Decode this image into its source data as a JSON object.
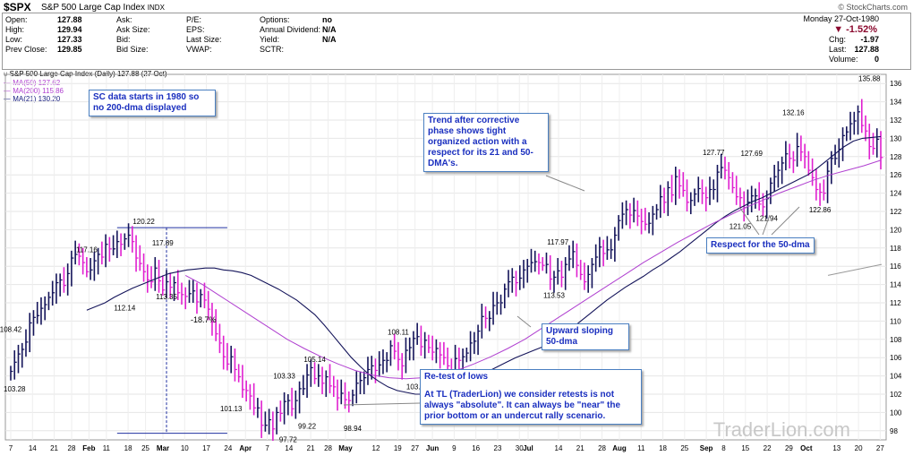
{
  "header": {
    "symbol": "$SPX",
    "desc": "S&P 500 Large Cap Index",
    "exchange": "INDX",
    "source": "© StockCharts.com",
    "date": "Monday 27-Oct-1980",
    "change_pct": "-1.52%"
  },
  "quote": {
    "col1": [
      [
        "Open:",
        "127.88"
      ],
      [
        "High:",
        "129.94"
      ],
      [
        "Low:",
        "127.33"
      ],
      [
        "Prev Close:",
        "129.85"
      ]
    ],
    "col2": [
      "Ask:",
      "Ask Size:",
      "Bid:",
      "Bid Size:"
    ],
    "col3": [
      "P/E:",
      "EPS:",
      "Last Size:",
      "VWAP:"
    ],
    "col4": [
      [
        "Options:",
        "no"
      ],
      [
        "Annual Dividend:",
        "N/A"
      ],
      [
        "Yield:",
        "N/A"
      ],
      [
        "SCTR:",
        ""
      ]
    ],
    "col5": [
      [
        "Chg:",
        "-1.97"
      ],
      [
        "Last:",
        "127.88"
      ],
      [
        "Volume:",
        "0"
      ]
    ]
  },
  "legend": {
    "title": "S&P 500 Large Cap Index (Daily) 127.88 (27 Oct)",
    "ma50": "MA(50) 127.62",
    "ma200": "MA(200) 115.86",
    "ma21": "MA(21) 130.20"
  },
  "annotations": {
    "a1": "SC data starts in 1980 so no 200-dma displayed",
    "a2": "Trend after corrective phase shows tight organized action with a respect for its 21 and 50-DMA's.",
    "a3": "Respect for the 50-dma",
    "a4": "Upward sloping 50-dma",
    "a5t": "Re-test of lows",
    "a5b": "At TL (TraderLion) we consider retests is not always \"absolute\". It can always be \"near\" the prior bottom or an undercut rally scenario.",
    "pct": "-18.7%"
  },
  "watermark": "TraderLion.com",
  "chart_data": {
    "type": "ohlc",
    "ylim": [
      97,
      137
    ],
    "yticks": [
      98,
      100,
      102,
      104,
      106,
      108,
      110,
      112,
      114,
      116,
      118,
      120,
      122,
      124,
      126,
      128,
      130,
      132,
      134,
      136
    ],
    "xticks": [
      [
        "7",
        0
      ],
      [
        "14",
        5
      ],
      [
        "21",
        10
      ],
      [
        "28",
        14
      ],
      [
        "Feb",
        18
      ],
      [
        "11",
        22
      ],
      [
        "18",
        27
      ],
      [
        "25",
        31
      ],
      [
        "Mar",
        35
      ],
      [
        "10",
        40
      ],
      [
        "17",
        45
      ],
      [
        "24",
        50
      ],
      [
        "Apr",
        54
      ],
      [
        "7",
        59
      ],
      [
        "14",
        64
      ],
      [
        "21",
        69
      ],
      [
        "28",
        73
      ],
      [
        "May",
        77
      ],
      [
        "12",
        84
      ],
      [
        "19",
        89
      ],
      [
        "27",
        93
      ],
      [
        "Jun",
        97
      ],
      [
        "9",
        102
      ],
      [
        "16",
        107
      ],
      [
        "23",
        112
      ],
      [
        "30",
        117
      ],
      [
        "Jul",
        119
      ],
      [
        "14",
        126
      ],
      [
        "21",
        131
      ],
      [
        "28",
        136
      ],
      [
        "Aug",
        140
      ],
      [
        "11",
        145
      ],
      [
        "18",
        150
      ],
      [
        "25",
        155
      ],
      [
        "Sep",
        160
      ],
      [
        "8",
        164
      ],
      [
        "15",
        169
      ],
      [
        "22",
        174
      ],
      [
        "29",
        179
      ],
      [
        "Oct",
        183
      ],
      [
        "13",
        190
      ],
      [
        "20",
        195
      ],
      [
        "27",
        200
      ]
    ],
    "closes": [
      104.5,
      105.5,
      106.4,
      106.9,
      107.7,
      109.8,
      110.4,
      110.6,
      111.4,
      111.8,
      112.6,
      113.1,
      114.2,
      114.5,
      113.9,
      115.2,
      116.9,
      117.3,
      117.1,
      116.4,
      115.4,
      115.6,
      116.6,
      117.3,
      117.0,
      118.4,
      117.9,
      117.9,
      118.7,
      118.4,
      119.0,
      119.4,
      118.7,
      116.9,
      116.3,
      115.4,
      114.5,
      114.3,
      115.8,
      114.4,
      113.4,
      114.3,
      113.7,
      114.2,
      113.1,
      112.9,
      112.7,
      113.0,
      113.3,
      112.1,
      112.9,
      112.3,
      111.3,
      109.9,
      108.6,
      107.6,
      106.1,
      105.3,
      106.1,
      104.7,
      103.9,
      102.5,
      102.4,
      101.8,
      100.5,
      100.5,
      98.6,
      98.6,
      99.2,
      98.2,
      100.0,
      99.9,
      101.2,
      101.3,
      100.4,
      101.3,
      102.6,
      102.6,
      104.1,
      104.9,
      103.7,
      104.0,
      103.2,
      103.9,
      102.9,
      102.8,
      101.6,
      102.1,
      101.4,
      101.3,
      101.9,
      103.2,
      103.5,
      103.8,
      104.7,
      105.1,
      104.6,
      105.2,
      105.7,
      105.7,
      107.3,
      106.7,
      105.8,
      105.1,
      106.8,
      107.1,
      108.1,
      108.3,
      107.2,
      107.9,
      107.1,
      106.6,
      107.0,
      106.3,
      106.0,
      105.1,
      104.6,
      105.9,
      105.7,
      106.1,
      106.5,
      107.6,
      107.8,
      108.9,
      110.5,
      110.3,
      110.3,
      111.7,
      112.0,
      112.0,
      113.5,
      114.3,
      114.8,
      114.2,
      114.7,
      115.6,
      116.0,
      116.4,
      116.5,
      116.4,
      116.1,
      116.2,
      114.6,
      114.8,
      115.5,
      114.8,
      116.2,
      116.8,
      117.6,
      116.1,
      115.1,
      114.3,
      115.1,
      116.2,
      117.0,
      118.1,
      117.4,
      117.8,
      117.8,
      119.4,
      121.0,
      121.7,
      122.2,
      121.6,
      122.1,
      121.5,
      120.9,
      120.6,
      120.7,
      121.7,
      122.2,
      123.6,
      123.0,
      124.6,
      123.8,
      125.8,
      124.8,
      124.3,
      123.0,
      123.2,
      123.9,
      124.5,
      124.0,
      123.5,
      124.4,
      124.4,
      126.3,
      126.8,
      126.5,
      125.7,
      124.6,
      123.6,
      123.5,
      122.4,
      123.0,
      123.7,
      123.7,
      122.8,
      122.5,
      123.4,
      125.1,
      125.8,
      126.5,
      127.3,
      128.3,
      127.8,
      127.6,
      129.1,
      128.5,
      128.0,
      126.5,
      125.7,
      124.4,
      124.1,
      124.0,
      126.4,
      127.8,
      127.8,
      128.8,
      130.3,
      130.7,
      131.6,
      131.9,
      132.9,
      131.4,
      130.8,
      129.1,
      128.9,
      129.9,
      127.9
    ],
    "ma21": [
      111.2,
      111.6,
      112.0,
      112.6,
      113.1,
      113.6,
      114.0,
      114.4,
      114.8,
      115.2,
      115.4,
      115.6,
      115.7,
      115.8,
      115.8,
      115.6,
      115.5,
      115.3,
      115.0,
      114.5,
      114.0,
      113.5,
      112.9,
      112.3,
      111.5,
      110.7,
      109.6,
      108.4,
      107.2,
      106.0,
      105.0,
      104.1,
      103.4,
      102.8,
      102.4,
      102.2,
      102.0,
      102.0,
      102.1,
      102.4,
      102.8,
      103.2,
      103.6,
      104.0,
      104.5,
      105.0,
      105.5,
      106.0,
      106.4,
      106.8,
      107.2,
      107.7,
      108.4,
      109.1,
      109.9,
      110.7,
      111.5,
      112.3,
      113.0,
      113.7,
      114.3,
      114.9,
      115.6,
      116.2,
      116.9,
      117.6,
      118.4,
      119.2,
      120.0,
      120.8,
      121.5,
      122.1,
      122.6,
      123.1,
      123.5,
      124.0,
      124.5,
      125.0,
      125.5,
      126.0,
      126.7,
      127.5,
      128.3,
      129.1,
      129.7,
      130.0,
      130.1,
      130.2
    ],
    "ma50": [
      130.0,
      130.5,
      131.0,
      131.7,
      132.5,
      133.5,
      134.2,
      135.0,
      136.0,
      137.6,
      139.5,
      140.0,
      137.0,
      133.5,
      129.5,
      125.0,
      120.5,
      116.5,
      113.0,
      110.0,
      107.5,
      105.5,
      104.2,
      103.4,
      103.3,
      103.6,
      104.3,
      105.3,
      106.6,
      108.0,
      109.5,
      111.0,
      112.6,
      114.2,
      115.7,
      117.1,
      118.4,
      119.6,
      120.7,
      121.8,
      122.8,
      123.7,
      124.5,
      125.3,
      126.0,
      126.6,
      127.1,
      127.6
    ],
    "annot_prices": [
      [
        "108.42",
        0
      ],
      [
        "103.28",
        1
      ],
      [
        "117.16",
        14
      ],
      [
        "120.22",
        25
      ],
      [
        "117.89",
        28
      ],
      [
        "112.14",
        21
      ],
      [
        "113.35",
        29
      ],
      [
        "101.13",
        41
      ],
      [
        "97.72",
        52
      ],
      [
        "103.33",
        51
      ],
      [
        "105.14",
        57
      ],
      [
        "99.22",
        55
      ],
      [
        "98.94",
        64
      ],
      [
        "108.11",
        72
      ],
      [
        "103.50",
        76
      ],
      [
        "117.97",
        102
      ],
      [
        "113.53",
        101
      ],
      [
        "127.77",
        131
      ],
      [
        "127.69",
        138
      ],
      [
        "121.05",
        136
      ],
      [
        "121.94",
        141
      ],
      [
        "132.16",
        146
      ],
      [
        "122.86",
        151
      ],
      [
        "135.88",
        160
      ]
    ]
  }
}
